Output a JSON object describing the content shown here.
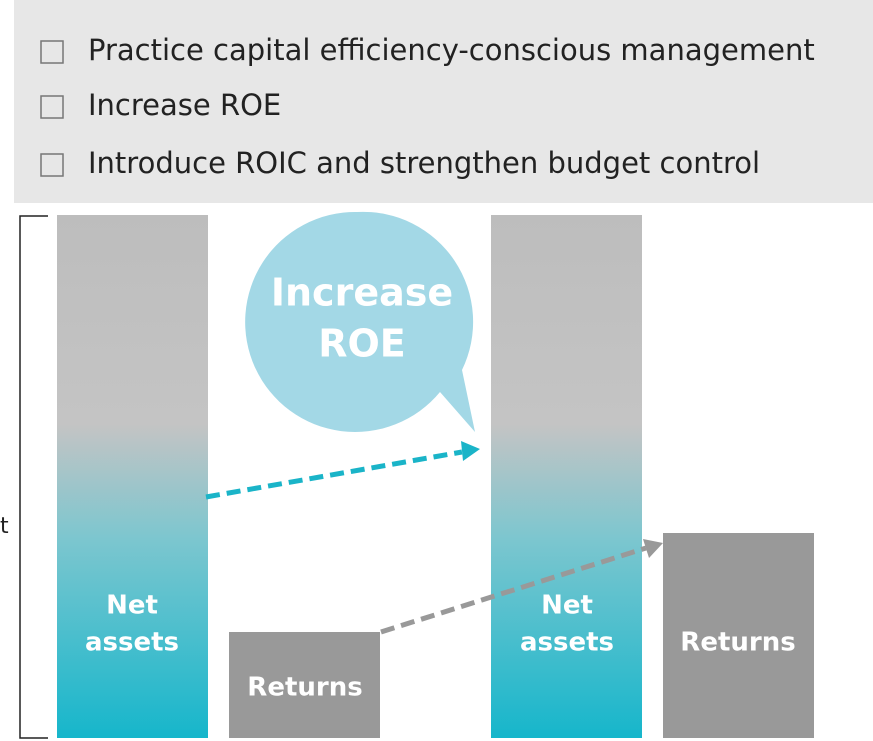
{
  "checklist": [
    "Practice capital efficiency-conscious management",
    "Increase ROE",
    "Introduce ROIC and strengthen budget control"
  ],
  "bracket_label": "t",
  "bubble": {
    "lines": [
      "Increase",
      "ROE"
    ]
  },
  "before": {
    "net_assets": [
      "Net",
      "assets"
    ],
    "returns": "Returns"
  },
  "after": {
    "net_assets": [
      "Net",
      "assets"
    ],
    "returns": "Returns"
  }
}
